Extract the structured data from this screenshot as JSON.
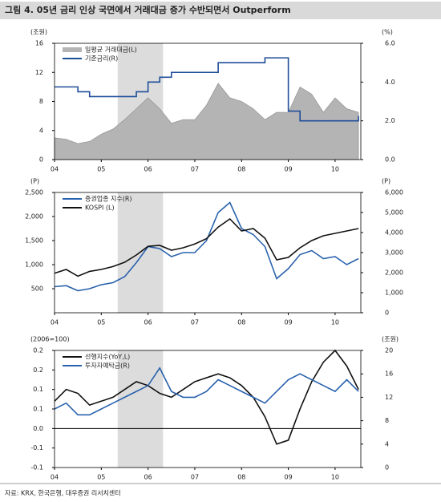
{
  "title": "그림 4. 05년 금리 인상 국면에서 거래대금 증가 수반되면서 Outperform",
  "source": "자료: KRX, 한국은행, 대우증권 리서치센터",
  "chart_data": [
    {
      "type": "combo",
      "y_label": "(조원)",
      "y2_label": "(%)",
      "legend": "upper left",
      "highlight": [
        5.35,
        6.32
      ],
      "x": [
        4,
        4.25,
        4.5,
        4.75,
        5,
        5.25,
        5.5,
        5.75,
        6,
        6.25,
        6.5,
        6.75,
        7,
        7.25,
        7.5,
        7.75,
        8,
        8.25,
        8.5,
        8.75,
        9,
        9.25,
        9.5,
        9.75,
        10,
        10.25,
        10.5
      ],
      "xlim": [
        4,
        10.55
      ],
      "xticks": [
        {
          "value": 4,
          "label": "04"
        },
        {
          "value": 5,
          "label": "05"
        },
        {
          "value": 6,
          "label": "06"
        },
        {
          "value": 7,
          "label": "07"
        },
        {
          "value": 8,
          "label": "08"
        },
        {
          "value": 9,
          "label": "09"
        },
        {
          "value": 10,
          "label": "10"
        }
      ],
      "ylim": [
        0,
        16
      ],
      "yticks": [
        0,
        4,
        8,
        12,
        16
      ],
      "y2lim": [
        0,
        6
      ],
      "y2ticks": [
        {
          "value": 0,
          "label": "0.0"
        },
        {
          "value": 2,
          "label": "2.0"
        },
        {
          "value": 4,
          "label": "4.0"
        },
        {
          "value": 6,
          "label": "6.0"
        }
      ],
      "series": [
        {
          "name": "일평균 거래대금(L)",
          "color": "#b4b4b4",
          "style": "area",
          "values": [
            3.0,
            2.8,
            2.2,
            2.5,
            3.5,
            4.2,
            5.5,
            7.0,
            8.5,
            7.0,
            5.0,
            5.5,
            5.5,
            7.5,
            10.5,
            8.5,
            8.0,
            7.0,
            5.5,
            6.5,
            6.5,
            10.0,
            9.0,
            6.5,
            8.5,
            7.0,
            6.5
          ]
        },
        {
          "name": "기준금리(R)",
          "color": "#1f4e99",
          "style": "step",
          "axis": "y2",
          "values": [
            3.75,
            3.75,
            3.5,
            3.25,
            3.25,
            3.25,
            3.25,
            3.5,
            4.0,
            4.25,
            4.5,
            4.5,
            4.5,
            4.5,
            5.0,
            5.0,
            5.0,
            5.0,
            5.25,
            5.25,
            2.5,
            2.0,
            2.0,
            2.0,
            2.0,
            2.0,
            2.25
          ]
        }
      ]
    },
    {
      "type": "line",
      "y_label": "(P)",
      "y2_label": "(P)",
      "legend": "upper left",
      "highlight": [
        5.35,
        6.32
      ],
      "x": [
        4,
        4.25,
        4.5,
        4.75,
        5,
        5.25,
        5.5,
        5.75,
        6,
        6.25,
        6.5,
        6.75,
        7,
        7.25,
        7.5,
        7.75,
        8,
        8.25,
        8.5,
        8.75,
        9,
        9.25,
        9.5,
        9.75,
        10,
        10.25,
        10.5
      ],
      "xlim": [
        4,
        10.55
      ],
      "xticks": [
        {
          "value": 4,
          "label": "04"
        },
        {
          "value": 5,
          "label": "05"
        },
        {
          "value": 6,
          "label": "06"
        },
        {
          "value": 7,
          "label": "07"
        },
        {
          "value": 8,
          "label": "08"
        },
        {
          "value": 9,
          "label": "09"
        },
        {
          "value": 10,
          "label": "10"
        }
      ],
      "ylim": [
        0,
        2500
      ],
      "yticks": [
        500,
        {
          "value": 1000,
          "label": "1,000"
        },
        {
          "value": 1500,
          "label": "1,500"
        },
        {
          "value": 2000,
          "label": "2,000"
        },
        {
          "value": 2500,
          "label": "2,500"
        }
      ],
      "y2lim": [
        0,
        6000
      ],
      "y2ticks": [
        0,
        {
          "value": 1000,
          "label": "1,000"
        },
        {
          "value": 2000,
          "label": "2,000"
        },
        {
          "value": 3000,
          "label": "3,000"
        },
        {
          "value": 4000,
          "label": "4,000"
        },
        {
          "value": 5000,
          "label": "5,000"
        },
        {
          "value": 6000,
          "label": "6,000"
        }
      ],
      "series": [
        {
          "name": "증권업종 지수(R)",
          "color": "#2a62ad",
          "axis": "y2",
          "values": [
            1300,
            1350,
            1100,
            1200,
            1400,
            1500,
            1800,
            2500,
            3300,
            3200,
            2800,
            3000,
            3000,
            3600,
            5000,
            5500,
            4200,
            3900,
            3300,
            1700,
            2200,
            2900,
            3100,
            2700,
            2800,
            2400,
            2700
          ]
        },
        {
          "name": "KOSPI (L)",
          "color": "#111111",
          "values": [
            820,
            900,
            760,
            860,
            900,
            960,
            1050,
            1200,
            1380,
            1400,
            1300,
            1350,
            1430,
            1540,
            1780,
            1950,
            1700,
            1750,
            1550,
            1100,
            1150,
            1350,
            1500,
            1600,
            1650,
            1700,
            1750
          ]
        }
      ]
    },
    {
      "type": "line",
      "y_label": "(2006=100)",
      "y2_label": "(조원)",
      "legend": "upper left",
      "highlight": [
        5.35,
        6.32
      ],
      "x": [
        4,
        4.25,
        4.5,
        4.75,
        5,
        5.25,
        5.5,
        5.75,
        6,
        6.25,
        6.5,
        6.75,
        7,
        7.25,
        7.5,
        7.75,
        8,
        8.25,
        8.5,
        8.75,
        9,
        9.25,
        9.5,
        9.75,
        10,
        10.25,
        10.5
      ],
      "xlim": [
        4,
        10.55
      ],
      "xticks": [
        {
          "value": 4,
          "label": "04"
        },
        {
          "value": 5,
          "label": "05"
        },
        {
          "value": 6,
          "label": "06"
        },
        {
          "value": 7,
          "label": "07"
        },
        {
          "value": 8,
          "label": "08"
        },
        {
          "value": 9,
          "label": "09"
        },
        {
          "value": 10,
          "label": "10"
        }
      ],
      "ylim": [
        -0.1,
        0.2
      ],
      "yticks": [
        -0.1,
        {
          "value": -0.05,
          "label": "-0.1"
        },
        {
          "value": 0,
          "label": "0.0"
        },
        {
          "value": 0.05,
          "label": "0.1"
        },
        0.1,
        {
          "value": 0.15,
          "label": "0.2"
        },
        0.2
      ],
      "y2lim": [
        0,
        20
      ],
      "y2ticks": [
        0,
        4,
        8,
        12,
        16,
        20
      ],
      "series": [
        {
          "name": "선행지수(YoY,L)",
          "color": "#111111",
          "values": [
            0.07,
            0.1,
            0.09,
            0.06,
            0.07,
            0.08,
            0.1,
            0.12,
            0.11,
            0.09,
            0.08,
            0.1,
            0.12,
            0.13,
            0.14,
            0.13,
            0.11,
            0.08,
            0.03,
            -0.04,
            -0.03,
            0.05,
            0.12,
            0.17,
            0.2,
            0.16,
            0.1
          ]
        },
        {
          "name": "투자자예탁금(R)",
          "color": "#2a62ad",
          "axis": "y2",
          "values": [
            10,
            11,
            9,
            9,
            10,
            11,
            12,
            13,
            14,
            17,
            13,
            12,
            12,
            13,
            15,
            14,
            13,
            12,
            11,
            13,
            15,
            16,
            15,
            14,
            13,
            15,
            13
          ]
        }
      ]
    }
  ]
}
